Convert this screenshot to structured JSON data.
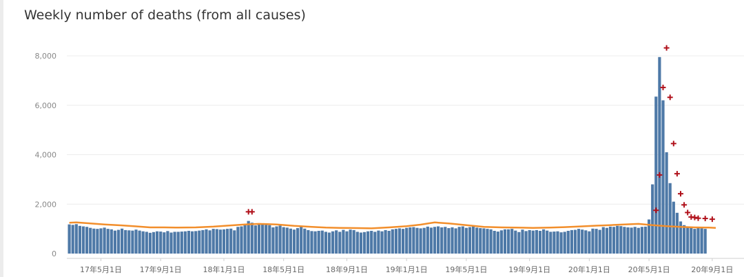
{
  "chart_data": {
    "type": "bar",
    "title": "Weekly number of deaths (from all causes)",
    "xlabel": "",
    "ylabel": "",
    "ylim": [
      0,
      8000
    ],
    "yticks": [
      0,
      2000,
      4000,
      6000,
      8000
    ],
    "ytick_labels": [
      "0",
      "2,000",
      "4,000",
      "6,000",
      "8,000"
    ],
    "xticks": [
      {
        "week": 9,
        "label": "17年5月1日"
      },
      {
        "week": 26,
        "label": "17年9月1日"
      },
      {
        "week": 44,
        "label": "18年1月1日"
      },
      {
        "week": 61,
        "label": "18年5月1日"
      },
      {
        "week": 79,
        "label": "18年9月1日"
      },
      {
        "week": 96,
        "label": "19年1月1日"
      },
      {
        "week": 113,
        "label": "19年5月1日"
      },
      {
        "week": 131,
        "label": "19年9月1日"
      },
      {
        "week": 148,
        "label": "20年1月1日"
      },
      {
        "week": 165,
        "label": "20年5月1日"
      },
      {
        "week": 183,
        "label": "20年9月1日"
      }
    ],
    "weekly_deaths": [
      1180,
      1160,
      1190,
      1120,
      1100,
      1080,
      1040,
      1010,
      1000,
      1020,
      1050,
      1000,
      980,
      930,
      960,
      1010,
      950,
      940,
      930,
      970,
      930,
      900,
      880,
      840,
      870,
      900,
      890,
      860,
      910,
      850,
      880,
      880,
      890,
      900,
      920,
      900,
      910,
      930,
      950,
      980,
      940,
      1000,
      990,
      970,
      980,
      1000,
      1010,
      940,
      1080,
      1100,
      1190,
      1320,
      1250,
      1140,
      1200,
      1220,
      1160,
      1150,
      1060,
      1100,
      1130,
      1070,
      1050,
      1010,
      970,
      1030,
      1080,
      1010,
      950,
      910,
      900,
      920,
      930,
      880,
      850,
      900,
      940,
      880,
      960,
      900,
      970,
      950,
      880,
      850,
      870,
      900,
      920,
      880,
      930,
      900,
      950,
      920,
      980,
      1000,
      1020,
      1000,
      1040,
      1060,
      1070,
      1040,
      1020,
      1040,
      1090,
      1050,
      1080,
      1100,
      1060,
      1080,
      1030,
      1060,
      1020,
      1080,
      1100,
      1040,
      1070,
      1100,
      1050,
      1030,
      1020,
      1000,
      980,
      920,
      890,
      940,
      980,
      980,
      1000,
      930,
      870,
      970,
      910,
      950,
      930,
      950,
      920,
      980,
      930,
      880,
      890,
      900,
      860,
      880,
      920,
      950,
      960,
      1000,
      970,
      940,
      900,
      1010,
      1000,
      960,
      1070,
      1040,
      1090,
      1080,
      1120,
      1110,
      1080,
      1060,
      1050,
      1080,
      1040,
      1080,
      1090,
      1380,
      2800,
      6350,
      7950,
      6200,
      4100,
      2850,
      2100,
      1650,
      1300,
      1150,
      1080,
      1060,
      1000,
      1050,
      1020,
      1000
    ],
    "series": [
      {
        "name": "",
        "color": "#4e79a7"
      },
      {
        "name": "",
        "color": "#f28e2b"
      },
      {
        "name": "",
        "color": "#b0101a"
      }
    ],
    "baseline": [
      [
        0,
        1250
      ],
      [
        2,
        1260
      ],
      [
        6,
        1220
      ],
      [
        10,
        1180
      ],
      [
        15,
        1140
      ],
      [
        19,
        1100
      ],
      [
        23,
        1060
      ],
      [
        27,
        1060
      ],
      [
        31,
        1050
      ],
      [
        36,
        1060
      ],
      [
        41,
        1090
      ],
      [
        46,
        1140
      ],
      [
        50,
        1180
      ],
      [
        54,
        1200
      ],
      [
        59,
        1180
      ],
      [
        64,
        1120
      ],
      [
        69,
        1080
      ],
      [
        73,
        1050
      ],
      [
        77,
        1040
      ],
      [
        82,
        1030
      ],
      [
        86,
        1020
      ],
      [
        91,
        1060
      ],
      [
        96,
        1110
      ],
      [
        100,
        1170
      ],
      [
        104,
        1260
      ],
      [
        108,
        1220
      ],
      [
        113,
        1150
      ],
      [
        118,
        1080
      ],
      [
        123,
        1060
      ],
      [
        127,
        1050
      ],
      [
        132,
        1040
      ],
      [
        137,
        1050
      ],
      [
        141,
        1070
      ],
      [
        146,
        1100
      ],
      [
        150,
        1130
      ],
      [
        154,
        1150
      ],
      [
        158,
        1180
      ],
      [
        162,
        1200
      ],
      [
        166,
        1150
      ],
      [
        170,
        1110
      ],
      [
        174,
        1080
      ],
      [
        178,
        1060
      ],
      [
        182,
        1050
      ],
      [
        184,
        1040
      ]
    ],
    "excess_markers": [
      [
        51,
        1690
      ],
      [
        52,
        1690
      ],
      [
        167,
        1750
      ],
      [
        168,
        3180
      ],
      [
        169,
        6720
      ],
      [
        170,
        8320
      ],
      [
        171,
        6320
      ],
      [
        172,
        4450
      ],
      [
        173,
        3230
      ],
      [
        174,
        2420
      ],
      [
        175,
        1970
      ],
      [
        176,
        1660
      ],
      [
        177,
        1480
      ],
      [
        178,
        1460
      ],
      [
        179,
        1430
      ],
      [
        181,
        1420
      ],
      [
        183,
        1390
      ]
    ]
  }
}
